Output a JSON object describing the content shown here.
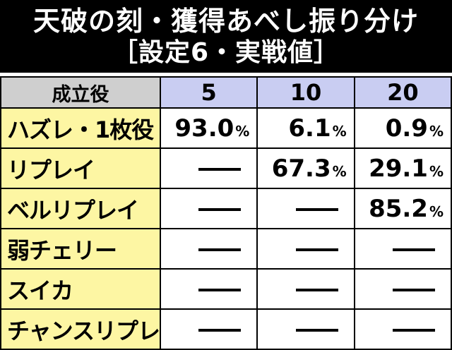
{
  "title": {
    "line1": "天破の刻・獲得あべし振り分け",
    "line2": "［設定6・実戦値］"
  },
  "table": {
    "header": {
      "role": "成立役",
      "columns": [
        "5",
        "10",
        "20"
      ]
    },
    "percent_unit": "%",
    "dash_symbol": "—",
    "rows": [
      {
        "role": "ハズレ・1枚役",
        "cells": [
          "93.0",
          "6.1",
          "0.9"
        ]
      },
      {
        "role": "リプレイ",
        "cells": [
          null,
          "67.3",
          "29.1"
        ]
      },
      {
        "role": "ベルリプレイ",
        "cells": [
          null,
          null,
          "85.2"
        ]
      },
      {
        "role": "弱チェリー",
        "cells": [
          null,
          null,
          null
        ]
      },
      {
        "role": "スイカ",
        "cells": [
          null,
          null,
          null
        ]
      },
      {
        "role": "チャンスリプレイ",
        "cells": [
          null,
          null,
          null
        ]
      }
    ]
  },
  "colors": {
    "title_bg": "#000000",
    "title_text": "#ffffff",
    "header_role_bg": "#cfcfcf",
    "header_value_bg": "#c9cdf2",
    "role_cell_bg": "#fdf6a3",
    "value_cell_bg": "#ffffff"
  }
}
